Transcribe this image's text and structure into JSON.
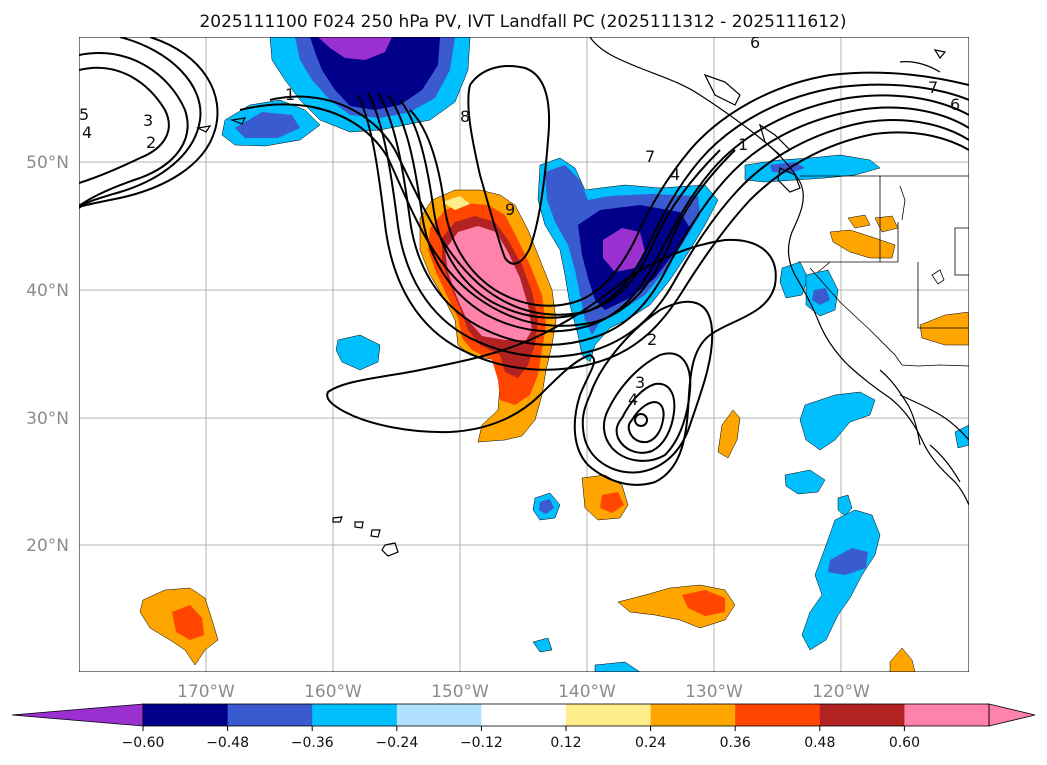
{
  "title": "2025111100 F024 250 hPa PV, IVT Landfall PC (2025111312 - 2025111612)",
  "lat_labels": [
    "50°N",
    "40°N",
    "30°N",
    "20°N"
  ],
  "lon_labels": [
    "170°W",
    "160°W",
    "150°W",
    "140°W",
    "130°W",
    "120°W"
  ],
  "colorbar": {
    "ticks": [
      "−0.60",
      "−0.48",
      "−0.36",
      "−0.24",
      "−0.12",
      "0.12",
      "0.24",
      "0.36",
      "0.48",
      "0.60"
    ],
    "colors": [
      "#9b30d0",
      "#00008b",
      "#3a5bd0",
      "#00bfff",
      "#b0e2ff",
      "#ffffff",
      "#ffec8b",
      "#ffa500",
      "#ff4500",
      "#b22222",
      "#ff82ab",
      "#ff82ab"
    ]
  },
  "contour_labels": [
    "6",
    "7",
    "6",
    "5",
    "4",
    "3",
    "2",
    "1",
    "8",
    "9",
    "7",
    "4",
    "2",
    "3",
    "4",
    "1"
  ],
  "colors": {
    "pos_light": "#ffec8b",
    "pos_orange": "#ffa500",
    "pos_red": "#ff4500",
    "pos_dark": "#b22222",
    "pos_pink": "#ff82ab",
    "neg_sky": "#00bfff",
    "neg_mid": "#3a5bd0",
    "neg_navy": "#00008b",
    "neg_purple": "#9b30d0"
  }
}
